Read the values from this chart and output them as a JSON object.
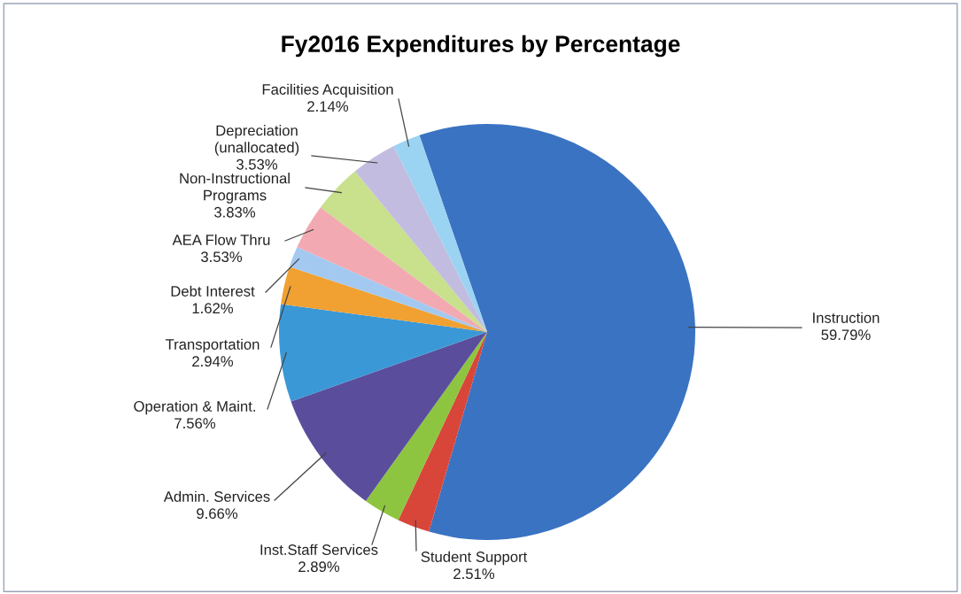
{
  "chart_data": {
    "type": "pie",
    "title": "Fy2016 Expenditures by Percentage",
    "categories": [
      "Instruction",
      "Student Support",
      "Inst.Staff Services",
      "Admin. Services",
      "Operation & Maint.",
      "Transportation",
      "Debt Interest",
      "AEA Flow Thru",
      "Non-Instructional Programs",
      "Depreciation (unallocated)",
      "Facilities Acquisition"
    ],
    "values": [
      59.79,
      2.51,
      2.89,
      9.66,
      7.56,
      2.94,
      1.62,
      3.53,
      3.83,
      3.53,
      2.14
    ],
    "value_labels": [
      "59.79%",
      "2.51%",
      "2.89%",
      "9.66%",
      "7.56%",
      "2.94%",
      "1.62%",
      "3.53%",
      "3.83%",
      "3.53%",
      "2.14%"
    ],
    "colors": [
      "#3a73c2",
      "#d8463a",
      "#8dc540",
      "#5a4e9c",
      "#3b98d6",
      "#f0a132",
      "#a3c9f1",
      "#f2a9b1",
      "#c9e08c",
      "#c2bde0",
      "#9bd3f3"
    ]
  }
}
